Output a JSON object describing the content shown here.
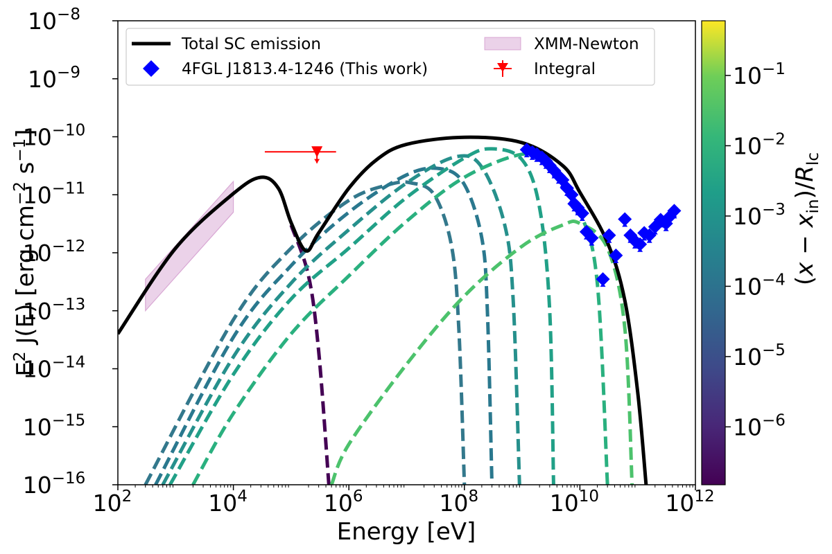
{
  "chart_data": {
    "type": "line",
    "xlabel": "Energy [eV]",
    "ylabel": "E^2 J(E) [erg cm^-2 s^-1]",
    "xscale": "log",
    "yscale": "log",
    "xlim": [
      100,
      1000000000000
    ],
    "ylim": [
      1e-16,
      1e-08
    ],
    "x_ticks": [
      {
        "value": 100,
        "base": "10",
        "exp": "2"
      },
      {
        "value": 10000,
        "base": "10",
        "exp": "4"
      },
      {
        "value": 1000000,
        "base": "10",
        "exp": "6"
      },
      {
        "value": 100000000,
        "base": "10",
        "exp": "8"
      },
      {
        "value": 10000000000,
        "base": "10",
        "exp": "10"
      },
      {
        "value": 1000000000000,
        "base": "10",
        "exp": "12"
      }
    ],
    "y_ticks": [
      {
        "value": 1e-16,
        "base": "10",
        "exp": "−16"
      },
      {
        "value": 1e-15,
        "base": "10",
        "exp": "−15"
      },
      {
        "value": 1e-14,
        "base": "10",
        "exp": "−14"
      },
      {
        "value": 1e-13,
        "base": "10",
        "exp": "−13"
      },
      {
        "value": 1e-12,
        "base": "10",
        "exp": "−12"
      },
      {
        "value": 1e-11,
        "base": "10",
        "exp": "−11"
      },
      {
        "value": 1e-10,
        "base": "10",
        "exp": "−10"
      },
      {
        "value": 1e-09,
        "base": "10",
        "exp": "−9"
      },
      {
        "value": 1e-08,
        "base": "10",
        "exp": "−8"
      }
    ],
    "legend": {
      "location": "upper-left",
      "entries": [
        {
          "label": "Total SC emission",
          "kind": "line",
          "color": "#000000"
        },
        {
          "label": "4FGL J1813.4-1246 (This work)",
          "kind": "diamond",
          "color": "#0000ff"
        },
        {
          "label": "XMM-Newton",
          "kind": "band",
          "color": "#c77fbf"
        },
        {
          "label": "Integral",
          "kind": "errorbar-triangle",
          "color": "#ff0000"
        }
      ]
    },
    "total_sc": {
      "name": "Total SC emission",
      "color": "#000000",
      "points": [
        [
          100,
          4e-14
        ],
        [
          1000,
          1.2e-12
        ],
        [
          10000,
          1.05e-11
        ],
        [
          30000,
          2e-11
        ],
        [
          60000,
          1.3e-11
        ],
        [
          100000,
          3.3e-12
        ],
        [
          180000,
          1.08e-12
        ],
        [
          300000,
          2.2e-12
        ],
        [
          1000000,
          1.3e-11
        ],
        [
          3000000,
          4e-11
        ],
        [
          10000000,
          7.4e-11
        ],
        [
          100000000,
          9.8e-11
        ],
        [
          1000000000,
          7.9e-11
        ],
        [
          5000000000,
          3.2e-11
        ],
        [
          10000000000,
          1.1e-11
        ],
        [
          30000000000,
          1.5e-12
        ],
        [
          60000000000,
          1.5e-13
        ],
        [
          100000000000,
          4e-15
        ],
        [
          140000000000,
          1e-16
        ]
      ]
    },
    "dashed_components": [
      {
        "name": "component-1",
        "color": "#440154",
        "points": [
          [
            100000,
            3e-12
          ],
          [
            200000,
            4e-13
          ],
          [
            300000,
            2e-14
          ],
          [
            450000,
            1e-16
          ]
        ]
      },
      {
        "name": "component-2",
        "color": "#33788c",
        "points": [
          [
            300,
            1e-16
          ],
          [
            10000,
            7e-14
          ],
          [
            100000,
            1.2e-12
          ],
          [
            1000000,
            8e-12
          ],
          [
            5000000,
            1.5e-11
          ],
          [
            12000000,
            1.6e-11
          ],
          [
            30000000,
            1e-11
          ],
          [
            60000000,
            1.3e-12
          ],
          [
            80000000,
            5e-14
          ],
          [
            100000000,
            1e-16
          ]
        ]
      },
      {
        "name": "component-3",
        "color": "#2a788e",
        "points": [
          [
            450,
            1e-16
          ],
          [
            10000,
            3.5e-14
          ],
          [
            100000,
            6e-13
          ],
          [
            1000000,
            5e-12
          ],
          [
            10000000,
            2.2e-11
          ],
          [
            40000000,
            2.8e-11
          ],
          [
            100000000,
            1.5e-11
          ],
          [
            200000000,
            1.8e-12
          ],
          [
            250000000,
            1e-13
          ],
          [
            300000000,
            1e-16
          ]
        ]
      },
      {
        "name": "component-4",
        "color": "#26908c",
        "points": [
          [
            600,
            1e-16
          ],
          [
            10000,
            1.6e-14
          ],
          [
            100000,
            3e-13
          ],
          [
            1000000,
            2.5e-12
          ],
          [
            10000000,
            1.6e-11
          ],
          [
            70000000,
            4.5e-11
          ],
          [
            200000000,
            3e-11
          ],
          [
            500000000,
            3e-12
          ],
          [
            700000000,
            1.5e-13
          ],
          [
            900000000,
            1e-16
          ]
        ]
      },
      {
        "name": "component-5",
        "color": "#21a087",
        "points": [
          [
            800,
            1e-16
          ],
          [
            10000,
            8e-15
          ],
          [
            100000,
            1.6e-13
          ],
          [
            1000000,
            1.2e-12
          ],
          [
            10000000,
            9e-12
          ],
          [
            100000000,
            4.3e-11
          ],
          [
            300000000,
            6.2e-11
          ],
          [
            1000000000,
            4e-11
          ],
          [
            2000000000,
            6e-12
          ],
          [
            3000000000,
            1e-13
          ],
          [
            3500000000,
            1e-16
          ]
        ]
      },
      {
        "name": "component-6",
        "color": "#2ab07f",
        "points": [
          [
            2000,
            1e-16
          ],
          [
            10000,
            1.7e-15
          ],
          [
            100000,
            4e-14
          ],
          [
            1000000,
            4e-13
          ],
          [
            10000000,
            3.5e-12
          ],
          [
            100000000,
            2e-11
          ],
          [
            1000000000,
            5e-11
          ],
          [
            3000000000,
            3.5e-11
          ],
          [
            10000000000,
            5e-12
          ],
          [
            20000000000,
            3e-13
          ],
          [
            30000000000,
            1e-16
          ]
        ]
      },
      {
        "name": "component-7",
        "color": "#4cc26c",
        "points": [
          [
            500000,
            1e-16
          ],
          [
            1000000,
            5e-16
          ],
          [
            10000000,
            1.2e-14
          ],
          [
            100000000,
            1.8e-13
          ],
          [
            1000000000,
            1.3e-12
          ],
          [
            5000000000,
            3e-12
          ],
          [
            10000000000,
            3.2e-12
          ],
          [
            30000000000,
            1.2e-12
          ],
          [
            60000000000,
            5e-14
          ],
          [
            80000000000,
            1e-16
          ]
        ]
      }
    ],
    "xmm_newton": {
      "name": "XMM-Newton",
      "color": "#c77fbf",
      "polygon": [
        [
          300,
          1e-13
        ],
        [
          10000,
          5e-12
        ],
        [
          10000,
          1.7e-11
        ],
        [
          300,
          3.5e-13
        ]
      ]
    },
    "integral": {
      "name": "Integral",
      "color": "#ff0000",
      "x": 280000,
      "y": 5.5e-11,
      "x_err": [
        35000,
        600000
      ],
      "arrow_to": 3.5e-11
    },
    "fermi_points": {
      "name": "4FGL J1813.4-1246 (This work)",
      "color": "#0000ff",
      "points": [
        [
          1200000000,
          6e-11
        ],
        [
          1500000000,
          5.4e-11
        ],
        [
          1800000000,
          5e-11
        ],
        [
          2200000000,
          4.4e-11
        ],
        [
          2600000000,
          3.8e-11
        ],
        [
          3000000000,
          3.2e-11
        ],
        [
          3600000000,
          2.6e-11
        ],
        [
          4300000000,
          2.1e-11
        ],
        [
          5000000000,
          1.8e-11
        ],
        [
          6000000000,
          1.3e-11
        ],
        [
          7200000000,
          1e-11
        ],
        [
          8000000000,
          7e-12
        ],
        [
          9200000000,
          6e-12
        ],
        [
          11000000000,
          4.8e-12
        ],
        [
          13000000000,
          2.3e-12
        ],
        [
          16000000000,
          1.8e-12
        ],
        [
          25000000000,
          3.5e-13
        ],
        [
          32000000000,
          2e-12
        ],
        [
          42000000000,
          9e-13
        ],
        [
          60000000000,
          3.8e-12
        ],
        [
          75000000000,
          2e-12
        ],
        [
          90000000000,
          1.6e-12
        ],
        [
          110000000000,
          1.4e-12
        ],
        [
          130000000000,
          2.2e-12
        ],
        [
          160000000000,
          2e-12
        ],
        [
          200000000000,
          2.8e-12
        ],
        [
          250000000000,
          3.7e-12
        ],
        [
          310000000000,
          3.2e-12
        ],
        [
          360000000000,
          4.2e-12
        ],
        [
          430000000000,
          5.3e-12
        ]
      ]
    },
    "colorbar": {
      "label": "(x − x_in)/R_lc",
      "scale": "log",
      "range": [
        1.5e-07,
        0.6
      ],
      "colormap": "viridis",
      "ticks": [
        {
          "value": 1e-06,
          "base": "10",
          "exp": "−6"
        },
        {
          "value": 1e-05,
          "base": "10",
          "exp": "−5"
        },
        {
          "value": 0.0001,
          "base": "10",
          "exp": "−4"
        },
        {
          "value": 0.001,
          "base": "10",
          "exp": "−3"
        },
        {
          "value": 0.01,
          "base": "10",
          "exp": "−2"
        },
        {
          "value": 0.1,
          "base": "10",
          "exp": "−1"
        }
      ]
    }
  }
}
